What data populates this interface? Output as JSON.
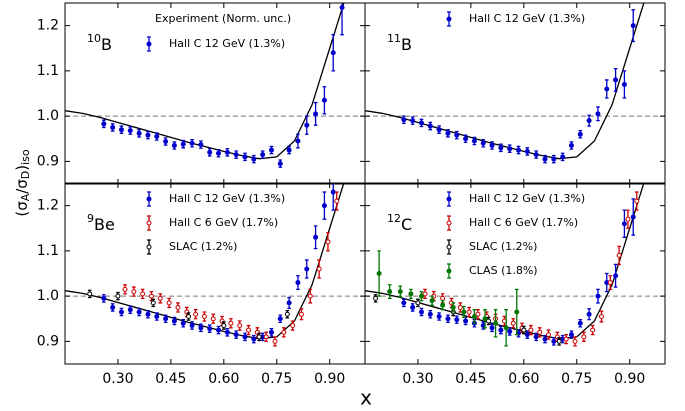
{
  "figure": {
    "xlabel": "x",
    "ylabel": {
      "open": "(σ",
      "sub1": "A",
      "mid": "/σ",
      "sub2": "D",
      "close": ")",
      "sub3": "iso"
    }
  },
  "chart_data": [
    {
      "type": "scatter",
      "nucleus_mass": "10",
      "nucleus": "B",
      "legend_title": "Experiment (Norm. unc.)",
      "xlim": [
        0.15,
        1.0
      ],
      "ylim": [
        0.85,
        1.25
      ],
      "xticks": [
        {
          "value": 0.3,
          "label": "0.30"
        },
        {
          "value": 0.45,
          "label": "0.45"
        },
        {
          "value": 0.6,
          "label": "0.60"
        },
        {
          "value": 0.75,
          "label": "0.75"
        },
        {
          "value": 0.9,
          "label": "0.90"
        }
      ],
      "yticks": [
        0.9,
        {
          "value": 1,
          "label": "1.0"
        },
        1.1,
        1.2
      ],
      "show_xtick_labels": false,
      "show_ytick_labels": true,
      "reference_line": 1,
      "curve": {
        "color": "#000000",
        "x": [
          0.15,
          0.2,
          0.25,
          0.3,
          0.35,
          0.4,
          0.45,
          0.5,
          0.55,
          0.6,
          0.65,
          0.7,
          0.75,
          0.8,
          0.85,
          0.9,
          0.94
        ],
        "y": [
          1.012,
          1.006,
          0.997,
          0.986,
          0.975,
          0.964,
          0.953,
          0.942,
          0.932,
          0.922,
          0.913,
          0.906,
          0.91,
          0.945,
          1.025,
          1.15,
          1.25
        ]
      },
      "series": [
        {
          "name": "Hall C 12 GeV (1.3%)",
          "color": "#0000cc",
          "marker": "filled",
          "x": [
            0.26,
            0.285,
            0.31,
            0.335,
            0.36,
            0.385,
            0.41,
            0.435,
            0.46,
            0.485,
            0.51,
            0.535,
            0.56,
            0.585,
            0.61,
            0.635,
            0.66,
            0.685,
            0.71,
            0.735,
            0.76,
            0.785,
            0.81,
            0.835,
            0.86,
            0.885,
            0.91,
            0.935
          ],
          "values": [
            0.983,
            0.975,
            0.97,
            0.968,
            0.962,
            0.958,
            0.955,
            0.944,
            0.935,
            0.938,
            0.94,
            0.937,
            0.92,
            0.918,
            0.92,
            0.915,
            0.91,
            0.905,
            0.915,
            0.925,
            0.895,
            0.925,
            0.945,
            0.98,
            1.005,
            1.035,
            1.14,
            1.24
          ],
          "errors": [
            0.008,
            0.008,
            0.008,
            0.008,
            0.008,
            0.008,
            0.008,
            0.008,
            0.008,
            0.008,
            0.008,
            0.008,
            0.008,
            0.008,
            0.008,
            0.008,
            0.008,
            0.008,
            0.008,
            0.008,
            0.008,
            0.008,
            0.015,
            0.02,
            0.025,
            0.03,
            0.04,
            0.06
          ]
        }
      ]
    },
    {
      "type": "scatter",
      "nucleus_mass": "11",
      "nucleus": "B",
      "xlim": [
        0.15,
        1.0
      ],
      "ylim": [
        0.85,
        1.25
      ],
      "xticks": [
        {
          "value": 0.3,
          "label": "0.30"
        },
        {
          "value": 0.45,
          "label": "0.45"
        },
        {
          "value": 0.6,
          "label": "0.60"
        },
        {
          "value": 0.75,
          "label": "0.75"
        },
        {
          "value": 0.9,
          "label": "0.90"
        }
      ],
      "yticks": [
        0.9,
        {
          "value": 1,
          "label": "1.0"
        },
        1.1,
        1.2
      ],
      "show_xtick_labels": false,
      "show_ytick_labels": false,
      "reference_line": 1,
      "curve": {
        "color": "#000000",
        "x": [
          0.15,
          0.2,
          0.25,
          0.3,
          0.35,
          0.4,
          0.45,
          0.5,
          0.55,
          0.6,
          0.65,
          0.7,
          0.75,
          0.8,
          0.85,
          0.9,
          0.94
        ],
        "y": [
          1.012,
          1.006,
          0.997,
          0.986,
          0.975,
          0.964,
          0.953,
          0.942,
          0.932,
          0.922,
          0.913,
          0.906,
          0.91,
          0.945,
          1.025,
          1.15,
          1.25
        ]
      },
      "series": [
        {
          "name": "Hall C 12 GeV (1.3%)",
          "color": "#0000cc",
          "marker": "filled",
          "x": [
            0.26,
            0.285,
            0.31,
            0.335,
            0.36,
            0.385,
            0.41,
            0.435,
            0.46,
            0.485,
            0.51,
            0.535,
            0.56,
            0.585,
            0.61,
            0.635,
            0.66,
            0.685,
            0.71,
            0.735,
            0.76,
            0.785,
            0.81,
            0.835,
            0.86,
            0.885,
            0.91
          ],
          "values": [
            0.992,
            0.99,
            0.985,
            0.978,
            0.97,
            0.962,
            0.958,
            0.95,
            0.945,
            0.94,
            0.935,
            0.93,
            0.928,
            0.925,
            0.922,
            0.915,
            0.905,
            0.905,
            0.91,
            0.935,
            0.96,
            0.99,
            1.005,
            1.06,
            1.08,
            1.07,
            1.2
          ],
          "errors": [
            0.008,
            0.008,
            0.008,
            0.008,
            0.008,
            0.008,
            0.008,
            0.008,
            0.008,
            0.008,
            0.008,
            0.008,
            0.008,
            0.008,
            0.008,
            0.008,
            0.008,
            0.008,
            0.008,
            0.008,
            0.008,
            0.012,
            0.015,
            0.02,
            0.025,
            0.03,
            0.035
          ]
        }
      ]
    },
    {
      "type": "scatter",
      "nucleus_mass": "9",
      "nucleus": "Be",
      "xlim": [
        0.15,
        1.0
      ],
      "ylim": [
        0.85,
        1.25
      ],
      "xticks": [
        {
          "value": 0.3,
          "label": "0.30"
        },
        {
          "value": 0.45,
          "label": "0.45"
        },
        {
          "value": 0.6,
          "label": "0.60"
        },
        {
          "value": 0.75,
          "label": "0.75"
        },
        {
          "value": 0.9,
          "label": "0.90"
        }
      ],
      "yticks": [
        0.9,
        {
          "value": 1,
          "label": "1.0"
        },
        1.1,
        1.2
      ],
      "show_xtick_labels": true,
      "show_ytick_labels": true,
      "reference_line": 1,
      "curve": {
        "color": "#000000",
        "x": [
          0.15,
          0.2,
          0.25,
          0.3,
          0.35,
          0.4,
          0.45,
          0.5,
          0.55,
          0.6,
          0.65,
          0.7,
          0.75,
          0.8,
          0.85,
          0.9,
          0.94
        ],
        "y": [
          1.012,
          1.006,
          0.997,
          0.986,
          0.975,
          0.964,
          0.953,
          0.942,
          0.932,
          0.922,
          0.913,
          0.906,
          0.91,
          0.945,
          1.025,
          1.15,
          1.25
        ]
      },
      "series": [
        {
          "name": "Hall C 12 GeV (1.3%)",
          "color": "#0000cc",
          "marker": "filled",
          "x": [
            0.26,
            0.285,
            0.31,
            0.335,
            0.36,
            0.385,
            0.41,
            0.435,
            0.46,
            0.485,
            0.51,
            0.535,
            0.56,
            0.585,
            0.61,
            0.635,
            0.66,
            0.685,
            0.71,
            0.735,
            0.76,
            0.785,
            0.81,
            0.835,
            0.86,
            0.885,
            0.91
          ],
          "values": [
            0.995,
            0.975,
            0.965,
            0.97,
            0.965,
            0.96,
            0.955,
            0.95,
            0.945,
            0.94,
            0.935,
            0.93,
            0.928,
            0.925,
            0.92,
            0.915,
            0.91,
            0.905,
            0.91,
            0.92,
            0.95,
            0.985,
            1.03,
            1.06,
            1.13,
            1.2,
            1.23
          ],
          "errors": [
            0.008,
            0.008,
            0.008,
            0.008,
            0.008,
            0.008,
            0.008,
            0.008,
            0.008,
            0.008,
            0.008,
            0.008,
            0.008,
            0.008,
            0.008,
            0.008,
            0.008,
            0.008,
            0.008,
            0.008,
            0.008,
            0.012,
            0.015,
            0.02,
            0.025,
            0.03,
            0.04
          ]
        },
        {
          "name": "Hall C 6 GeV (1.7%)",
          "color": "#cc0000",
          "marker": "open",
          "x": [
            0.32,
            0.345,
            0.37,
            0.395,
            0.42,
            0.445,
            0.47,
            0.495,
            0.52,
            0.545,
            0.57,
            0.595,
            0.62,
            0.645,
            0.67,
            0.695,
            0.72,
            0.745,
            0.77,
            0.795,
            0.82,
            0.845,
            0.87,
            0.895,
            0.92
          ],
          "values": [
            1.015,
            1.01,
            1.005,
            1.0,
            0.995,
            0.985,
            0.975,
            0.965,
            0.96,
            0.955,
            0.95,
            0.945,
            0.94,
            0.935,
            0.925,
            0.92,
            0.91,
            0.9,
            0.92,
            0.935,
            0.96,
            1.0,
            1.06,
            1.12,
            1.21
          ],
          "errors": [
            0.01,
            0.01,
            0.01,
            0.01,
            0.01,
            0.01,
            0.01,
            0.01,
            0.01,
            0.01,
            0.01,
            0.01,
            0.01,
            0.01,
            0.01,
            0.01,
            0.01,
            0.01,
            0.01,
            0.01,
            0.012,
            0.015,
            0.02,
            0.02,
            0.02
          ]
        },
        {
          "name": "SLAC (1.2%)",
          "color": "#000000",
          "marker": "open",
          "x": [
            0.22,
            0.3,
            0.4,
            0.5,
            0.6,
            0.7,
            0.78
          ],
          "values": [
            1.005,
            1.0,
            0.985,
            0.955,
            0.935,
            0.91,
            0.96
          ],
          "errors": [
            0.008,
            0.008,
            0.008,
            0.008,
            0.008,
            0.008,
            0.008
          ]
        }
      ]
    },
    {
      "type": "scatter",
      "nucleus_mass": "12",
      "nucleus": "C",
      "xlim": [
        0.15,
        1.0
      ],
      "ylim": [
        0.85,
        1.25
      ],
      "xticks": [
        {
          "value": 0.3,
          "label": "0.30"
        },
        {
          "value": 0.45,
          "label": "0.45"
        },
        {
          "value": 0.6,
          "label": "0.60"
        },
        {
          "value": 0.75,
          "label": "0.75"
        },
        {
          "value": 0.9,
          "label": "0.90"
        }
      ],
      "yticks": [
        0.9,
        {
          "value": 1,
          "label": "1.0"
        },
        1.1,
        1.2
      ],
      "show_xtick_labels": true,
      "show_ytick_labels": false,
      "reference_line": 1,
      "curve": {
        "color": "#000000",
        "x": [
          0.15,
          0.2,
          0.25,
          0.3,
          0.35,
          0.4,
          0.45,
          0.5,
          0.55,
          0.6,
          0.65,
          0.7,
          0.75,
          0.8,
          0.85,
          0.9,
          0.94
        ],
        "y": [
          1.012,
          1.006,
          0.997,
          0.986,
          0.975,
          0.964,
          0.953,
          0.942,
          0.932,
          0.922,
          0.913,
          0.906,
          0.91,
          0.945,
          1.025,
          1.15,
          1.25
        ]
      },
      "series": [
        {
          "name": "Hall C 12 GeV (1.3%)",
          "color": "#0000cc",
          "marker": "filled",
          "x": [
            0.26,
            0.285,
            0.31,
            0.335,
            0.36,
            0.385,
            0.41,
            0.435,
            0.46,
            0.485,
            0.51,
            0.535,
            0.56,
            0.585,
            0.61,
            0.635,
            0.66,
            0.685,
            0.71,
            0.735,
            0.76,
            0.785,
            0.81,
            0.835,
            0.86,
            0.885,
            0.91
          ],
          "values": [
            0.985,
            0.975,
            0.965,
            0.96,
            0.955,
            0.95,
            0.948,
            0.945,
            0.94,
            0.935,
            0.93,
            0.925,
            0.922,
            0.918,
            0.915,
            0.91,
            0.905,
            0.9,
            0.905,
            0.915,
            0.94,
            0.96,
            1.0,
            1.03,
            1.045,
            1.16,
            1.175
          ],
          "errors": [
            0.008,
            0.008,
            0.008,
            0.008,
            0.008,
            0.008,
            0.008,
            0.008,
            0.008,
            0.008,
            0.008,
            0.008,
            0.008,
            0.008,
            0.008,
            0.008,
            0.008,
            0.008,
            0.008,
            0.008,
            0.008,
            0.012,
            0.015,
            0.02,
            0.025,
            0.03,
            0.04
          ]
        },
        {
          "name": "Hall C 6 GeV (1.7%)",
          "color": "#cc0000",
          "marker": "open",
          "x": [
            0.32,
            0.345,
            0.37,
            0.395,
            0.42,
            0.445,
            0.47,
            0.495,
            0.52,
            0.545,
            0.57,
            0.595,
            0.62,
            0.645,
            0.67,
            0.695,
            0.72,
            0.745,
            0.77,
            0.795,
            0.82,
            0.845,
            0.87,
            0.895,
            0.92
          ],
          "values": [
            1.005,
            1.0,
            0.995,
            0.985,
            0.975,
            0.965,
            0.96,
            0.955,
            0.95,
            0.945,
            0.94,
            0.93,
            0.925,
            0.92,
            0.915,
            0.91,
            0.905,
            0.9,
            0.91,
            0.925,
            0.955,
            1.03,
            1.09,
            1.17,
            1.21
          ],
          "errors": [
            0.01,
            0.01,
            0.01,
            0.01,
            0.01,
            0.01,
            0.01,
            0.01,
            0.01,
            0.01,
            0.01,
            0.01,
            0.01,
            0.01,
            0.01,
            0.01,
            0.01,
            0.01,
            0.01,
            0.01,
            0.012,
            0.015,
            0.02,
            0.02,
            0.02
          ]
        },
        {
          "name": "SLAC (1.2%)",
          "color": "#000000",
          "marker": "open",
          "x": [
            0.18,
            0.3,
            0.4,
            0.5,
            0.6,
            0.7
          ],
          "values": [
            0.995,
            0.985,
            0.965,
            0.945,
            0.925,
            0.9
          ],
          "errors": [
            0.008,
            0.008,
            0.008,
            0.008,
            0.008,
            0.008
          ]
        },
        {
          "name": "CLAS (1.8%)",
          "color": "#007700",
          "marker": "filled",
          "x": [
            0.19,
            0.22,
            0.25,
            0.28,
            0.31,
            0.34,
            0.37,
            0.4,
            0.43,
            0.46,
            0.49,
            0.52,
            0.55,
            0.58
          ],
          "values": [
            1.05,
            1.01,
            1.01,
            1.005,
            1.0,
            0.99,
            0.98,
            0.975,
            0.965,
            0.955,
            0.95,
            0.94,
            0.93,
            0.965
          ],
          "errors": [
            0.05,
            0.015,
            0.012,
            0.01,
            0.01,
            0.01,
            0.01,
            0.01,
            0.012,
            0.015,
            0.02,
            0.03,
            0.04,
            0.05
          ]
        }
      ]
    }
  ]
}
